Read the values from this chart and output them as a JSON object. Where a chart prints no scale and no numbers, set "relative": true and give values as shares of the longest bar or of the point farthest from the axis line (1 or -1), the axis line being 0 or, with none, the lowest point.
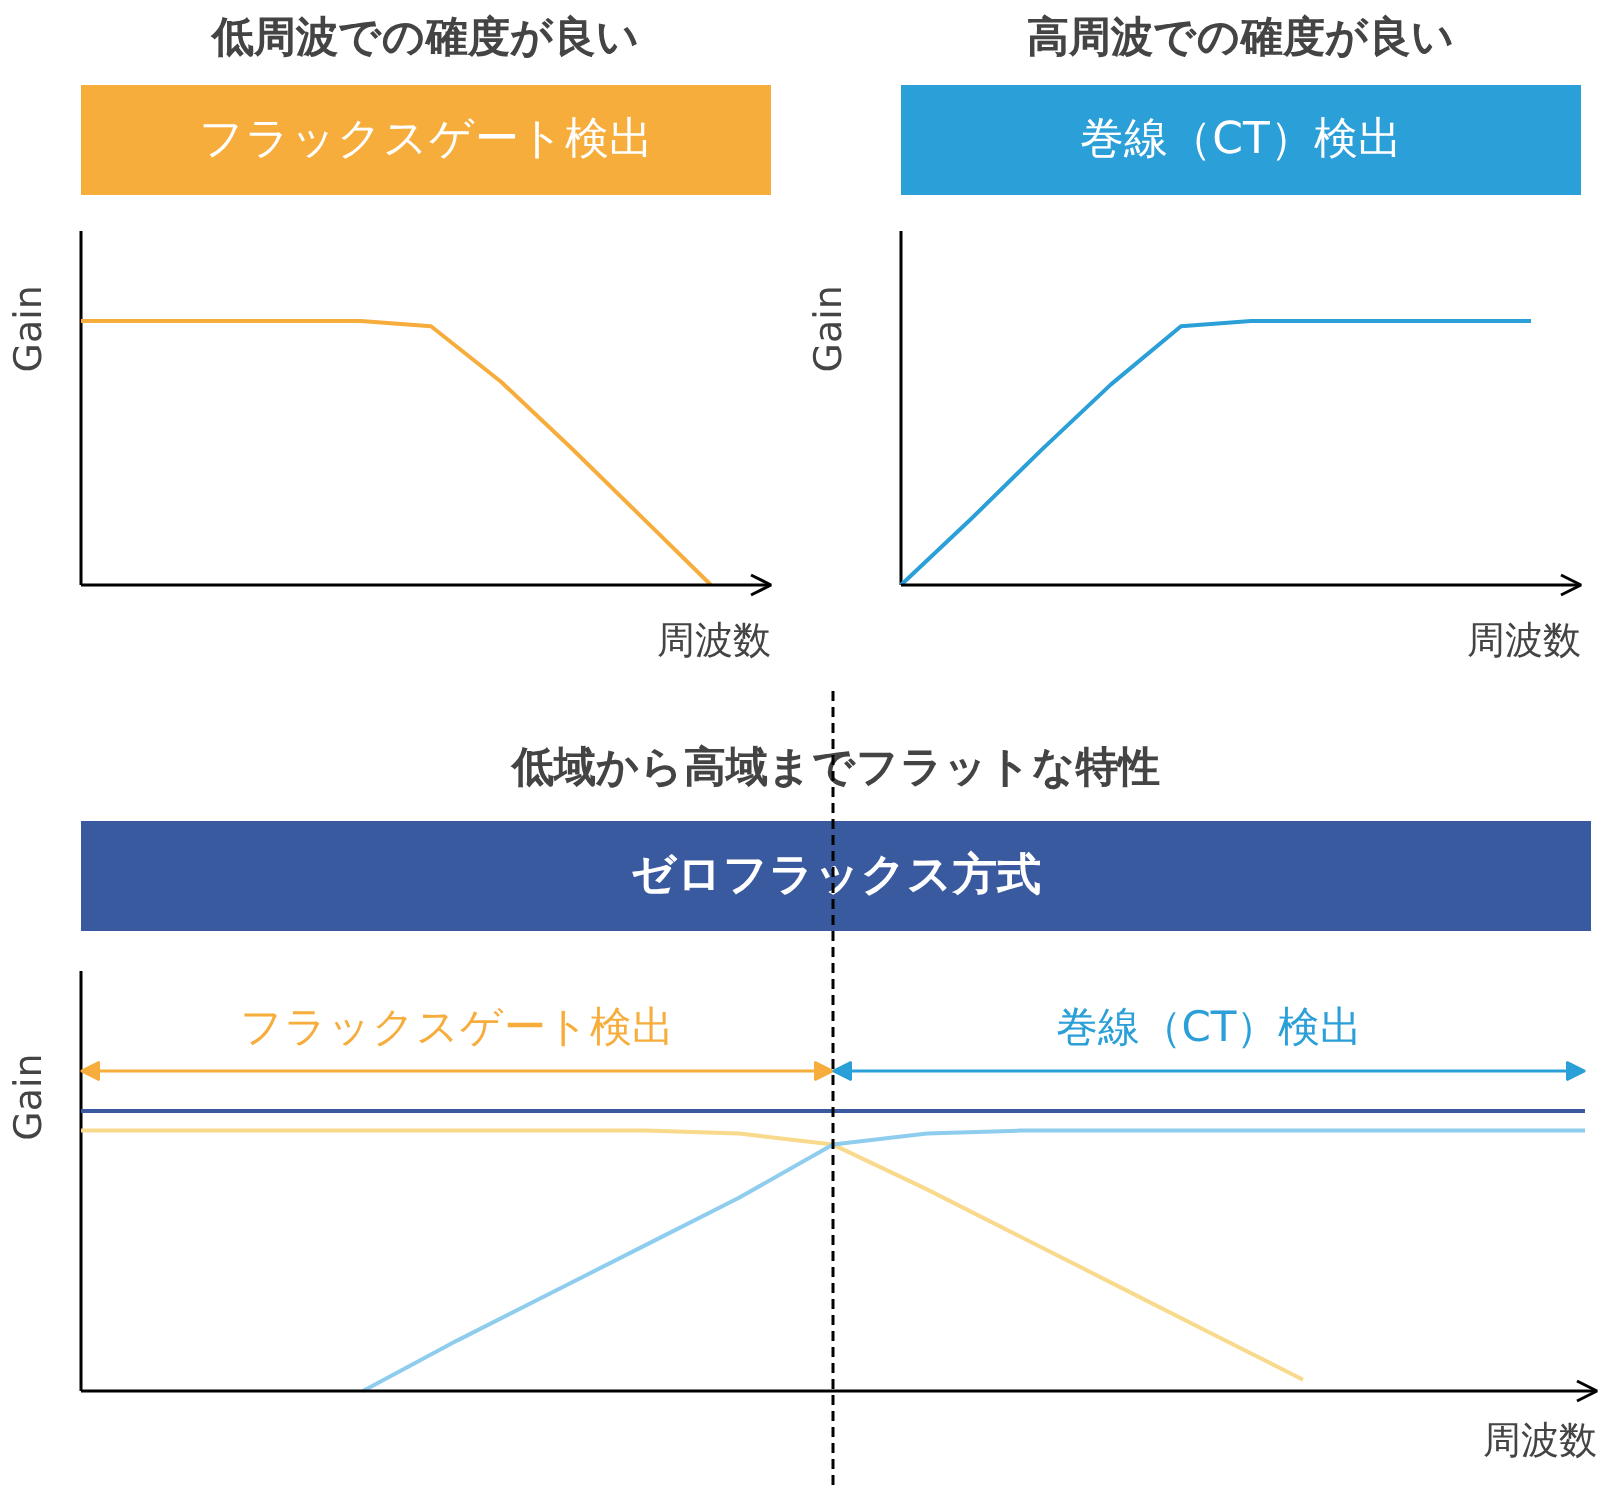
{
  "chart_data": [
    {
      "type": "line",
      "title": "低周波での確度が良い",
      "subtitle": "フラックスゲート検出",
      "xlabel": "周波数",
      "ylabel": "Gain",
      "relative": true,
      "categories": [
        null,
        null,
        null,
        null,
        null,
        null,
        null,
        null,
        null,
        null
      ],
      "series": [
        {
          "color": "#f6ad3c",
          "values": [
            1,
            1,
            1,
            1,
            1,
            0.98,
            0.77,
            0.52,
            0.26,
            0
          ]
        }
      ]
    },
    {
      "type": "line",
      "title": "高周波での確度が良い",
      "subtitle": "巻線（CT）検出",
      "xlabel": "周波数",
      "ylabel": "Gain",
      "relative": true,
      "categories": [
        null,
        null,
        null,
        null,
        null,
        null,
        null,
        null,
        null,
        null
      ],
      "series": [
        {
          "color": "#2a9fd8",
          "values": [
            0,
            0.25,
            0.51,
            0.76,
            0.98,
            1,
            1,
            1,
            1,
            1
          ]
        }
      ]
    },
    {
      "type": "line",
      "title": "低域から高域までフラットな特性",
      "subtitle": "ゼロフラックス方式",
      "xlabel": "周波数",
      "ylabel": "Gain",
      "relative": true,
      "categories": [
        null,
        null,
        null,
        null,
        null,
        null,
        null,
        null,
        null,
        null,
        null,
        null,
        null,
        null,
        null,
        null,
        null
      ],
      "series": [
        {
          "color": "#3a5aa0",
          "values": [
            1,
            1,
            1,
            1,
            1,
            1,
            1,
            1,
            1,
            1,
            1,
            1,
            1,
            1,
            1,
            1,
            1
          ]
        },
        {
          "color": "#f9d98c",
          "values": [
            0.93,
            0.93,
            0.93,
            0.93,
            0.93,
            0.93,
            0.93,
            0.92,
            0.88,
            0.72,
            0.55,
            0.38,
            0.21,
            0.04,
            null,
            null,
            null
          ]
        },
        {
          "color": "#8ecdee",
          "values": [
            null,
            null,
            null,
            0,
            0.18,
            0.35,
            0.52,
            0.69,
            0.88,
            0.92,
            0.93,
            0.93,
            0.93,
            0.93,
            0.93,
            0.93,
            0.93
          ]
        }
      ],
      "annotations": [
        "フラックスゲート検出",
        "巻線（CT）検出"
      ]
    }
  ]
}
